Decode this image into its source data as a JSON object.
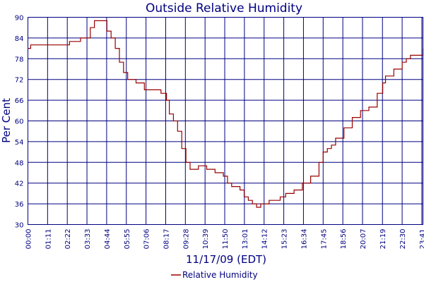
{
  "chart_data": {
    "type": "line",
    "title": "Outside Relative Humidity",
    "ylabel": "Per Cent",
    "xlabel": "11/17/09 (EDT)",
    "ylim": [
      30,
      90
    ],
    "yticks": [
      30,
      36,
      42,
      48,
      54,
      60,
      66,
      72,
      78,
      84,
      90
    ],
    "xlim": [
      "00:00",
      "23:45"
    ],
    "xticks": [
      "00:00",
      "01:11",
      "02:22",
      "03:33",
      "04:44",
      "05:55",
      "07:06",
      "08:17",
      "09:28",
      "10:39",
      "11:50",
      "13:01",
      "14:12",
      "15:23",
      "16:34",
      "17:45",
      "18:56",
      "20:07",
      "21:19",
      "22:30",
      "23:41"
    ],
    "grid": true,
    "legend": "bottom-center",
    "colors": {
      "axis": "#000080",
      "grid": "#000080",
      "series": "#990000"
    },
    "series": [
      {
        "name": "Relative Humidity",
        "x": [
          "00:00",
          "00:10",
          "01:10",
          "02:30",
          "03:00",
          "03:10",
          "03:30",
          "03:45",
          "04:00",
          "04:15",
          "04:45",
          "05:00",
          "05:15",
          "05:30",
          "05:45",
          "06:00",
          "06:30",
          "07:00",
          "07:15",
          "07:45",
          "08:00",
          "08:20",
          "08:30",
          "08:45",
          "09:00",
          "09:15",
          "09:30",
          "09:45",
          "10:15",
          "10:45",
          "11:15",
          "11:45",
          "12:00",
          "12:15",
          "12:45",
          "13:00",
          "13:15",
          "13:30",
          "13:45",
          "14:00",
          "14:15",
          "14:30",
          "15:00",
          "15:10",
          "15:30",
          "16:00",
          "16:30",
          "17:00",
          "17:30",
          "17:45",
          "18:00",
          "18:15",
          "18:30",
          "19:00",
          "19:30",
          "20:00",
          "20:30",
          "21:00",
          "21:20",
          "21:30",
          "22:00",
          "22:30",
          "22:45",
          "23:00",
          "23:30",
          "23:45"
        ],
        "values": [
          81,
          82,
          82,
          83,
          83,
          84,
          84,
          87,
          89,
          89,
          86,
          84,
          81,
          77,
          74,
          72,
          71,
          69,
          69,
          69,
          68,
          66,
          62,
          60,
          57,
          52,
          48,
          46,
          47,
          46,
          45,
          44,
          42,
          41,
          40,
          38,
          37,
          36,
          35,
          36,
          36,
          37,
          37,
          38,
          39,
          40,
          42,
          44,
          48,
          51,
          52,
          53,
          55,
          58,
          61,
          63,
          64,
          68,
          71,
          73,
          75,
          77,
          78,
          79,
          79,
          81
        ]
      }
    ]
  }
}
